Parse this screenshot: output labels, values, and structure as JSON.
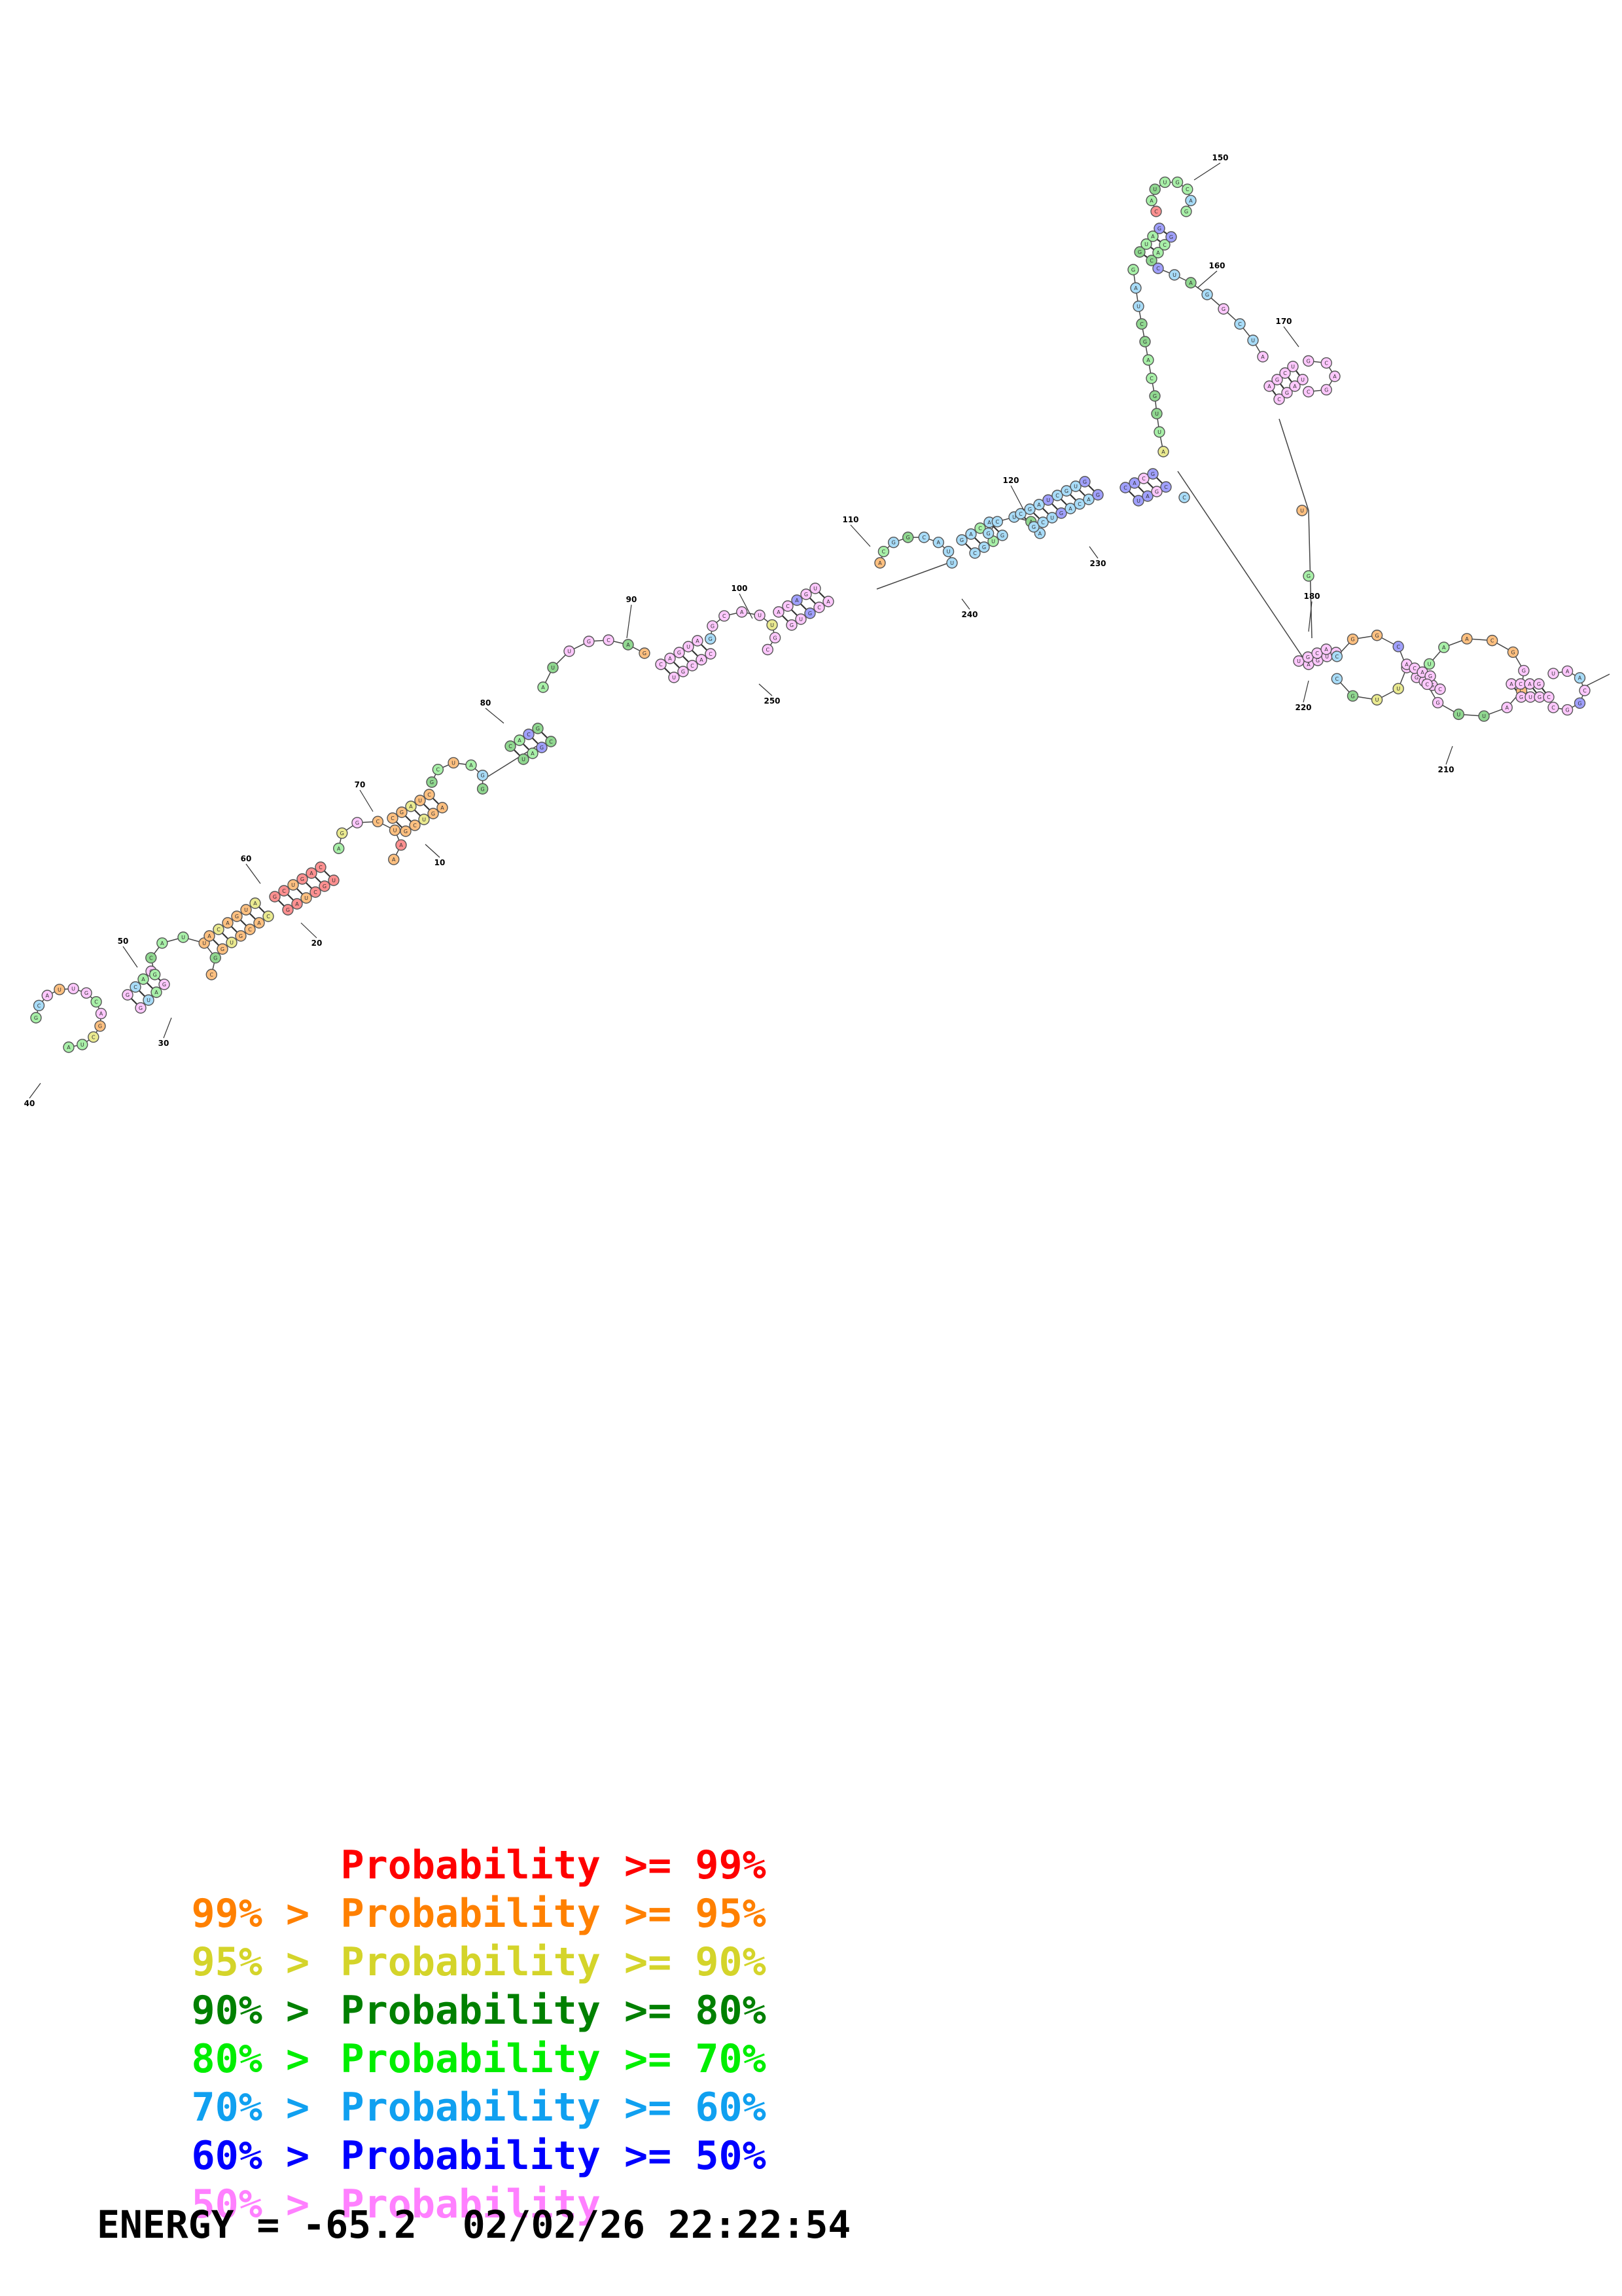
{
  "structure": {
    "position_labels": [
      "10",
      "20",
      "30",
      "40",
      "50",
      "60",
      "70",
      "80",
      "90",
      "100",
      "110",
      "120",
      "150",
      "160",
      "170",
      "180",
      "210",
      "220",
      "230",
      "240",
      "250"
    ]
  },
  "legend": {
    "rows": [
      {
        "prefix": "",
        "text": "Probability >= 99%",
        "color": "#ff0000"
      },
      {
        "prefix": "99% > ",
        "text": "Probability >= 95%",
        "color": "#ff8000"
      },
      {
        "prefix": "95% > ",
        "text": "Probability >= 90%",
        "color": "#d4d42a"
      },
      {
        "prefix": "90% > ",
        "text": "Probability >= 80%",
        "color": "#008000"
      },
      {
        "prefix": "80% > ",
        "text": "Probability >= 70%",
        "color": "#00ee00"
      },
      {
        "prefix": "70% > ",
        "text": "Probability >= 60%",
        "color": "#10a0f0"
      },
      {
        "prefix": "60% > ",
        "text": "Probability >= 50%",
        "color": "#0000ff"
      },
      {
        "prefix": "50% > ",
        "text": "Probability",
        "color": "#ff80ff"
      }
    ]
  },
  "footer": {
    "energy_text": "ENERGY = -65.2  02/02/26 22:22:54"
  },
  "nucleotide_fill_colors": {
    "red": "#ff9090",
    "orange": "#ffc080",
    "yellow": "#eaea90",
    "darkgreen": "#90d890",
    "green": "#a8f0a8",
    "cyan": "#a8dcf8",
    "blue": "#a0a0ff",
    "pink": "#ffc8ff"
  }
}
